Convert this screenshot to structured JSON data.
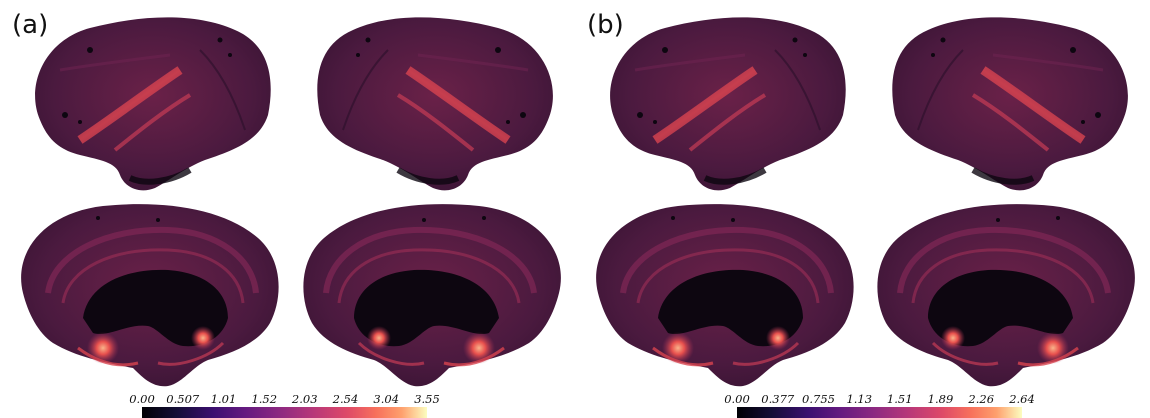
{
  "panels": [
    {
      "label": "(a)",
      "colorbar": {
        "colormap": "magma",
        "ticks": [
          "0.00",
          "0.507",
          "1.01",
          "1.52",
          "2.03",
          "2.54",
          "3.04",
          "3.55"
        ]
      }
    },
    {
      "label": "(b)",
      "colorbar": {
        "colormap": "magma",
        "ticks": [
          "0.00",
          "0.377",
          "0.755",
          "1.13",
          "1.51",
          "1.89",
          "2.26",
          "2.64"
        ]
      }
    }
  ],
  "colors": {
    "cortex_base": "#4a1a3e",
    "cortex_dark": "#2a0f2a",
    "medial_wall": "#0d0610",
    "hot_spot": "#e85a4f",
    "warm_band": "#9e2f57"
  }
}
